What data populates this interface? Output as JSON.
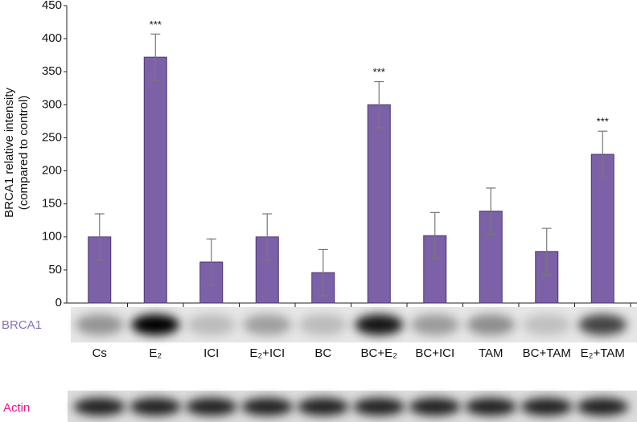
{
  "chart_data": {
    "type": "bar",
    "y_label_lines": [
      "BRCA1 relative intensity",
      "(compared to control)"
    ],
    "categories": [
      "Cs",
      "E₂",
      "ICI",
      "E₂+ICI",
      "BC",
      "BC+E₂",
      "BC+ICI",
      "TAM",
      "BC+TAM",
      "E₂+TAM"
    ],
    "values": [
      100,
      372,
      62,
      100,
      46,
      300,
      102,
      139,
      78,
      225
    ],
    "errors": [
      35,
      35,
      35,
      35,
      35,
      35,
      35,
      35,
      35,
      35
    ],
    "significance": [
      null,
      "***",
      null,
      null,
      null,
      "***",
      null,
      null,
      null,
      "***"
    ],
    "color": "#7d61a8",
    "ylim": [
      0,
      450
    ],
    "yticks": [
      0,
      50,
      100,
      150,
      200,
      250,
      300,
      350,
      400,
      450
    ],
    "blot_labels": [
      "BRCA1",
      "Actin"
    ]
  }
}
